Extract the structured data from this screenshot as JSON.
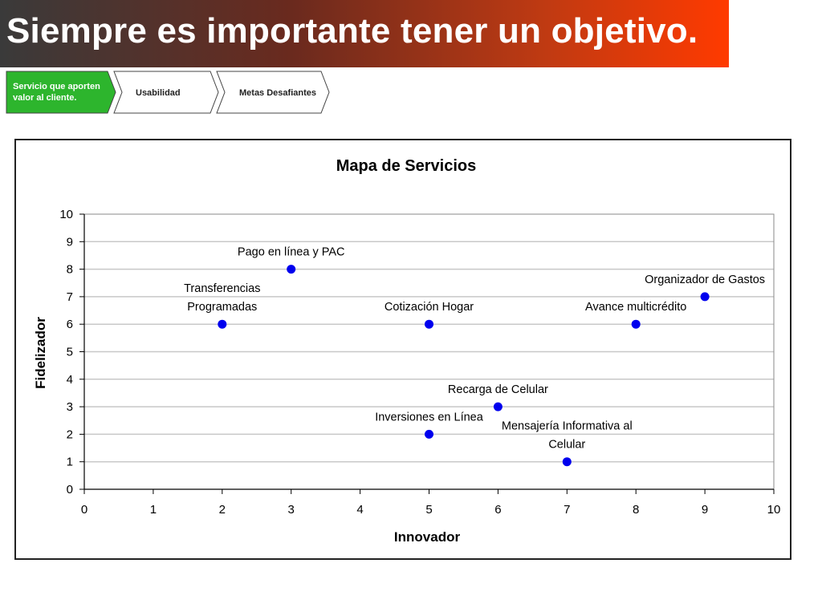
{
  "header": {
    "title": "Siempre es importante tener un objetivo."
  },
  "steps": [
    {
      "label_line1": "Servicio que aporten",
      "label_line2": "valor al cliente.",
      "active": true
    },
    {
      "label": "Usabilidad",
      "active": false
    },
    {
      "label": "Metas Desafiantes",
      "active": false
    }
  ],
  "colors": {
    "active_step": "#2db52d",
    "point": "#0000ee",
    "grid": "#c8c8c8"
  },
  "chart_data": {
    "type": "scatter",
    "title": "Mapa de Servicios",
    "xlabel": "Innovador",
    "ylabel": "Fidelizador",
    "xlim": [
      0,
      10
    ],
    "ylim": [
      0,
      10
    ],
    "xticks": [
      0,
      1,
      2,
      3,
      4,
      5,
      6,
      7,
      8,
      9,
      10
    ],
    "yticks": [
      0,
      1,
      2,
      3,
      4,
      5,
      6,
      7,
      8,
      9,
      10
    ],
    "grid": "horizontal",
    "points": [
      {
        "x": 2,
        "y": 6,
        "label": [
          "Transferencias",
          "Programadas"
        ]
      },
      {
        "x": 3,
        "y": 8,
        "label": [
          "Pago en línea y PAC"
        ]
      },
      {
        "x": 5,
        "y": 6,
        "label": [
          "Cotización Hogar"
        ]
      },
      {
        "x": 5,
        "y": 2,
        "label": [
          "Inversiones en Línea"
        ]
      },
      {
        "x": 6,
        "y": 3,
        "label": [
          "Recarga de Celular"
        ]
      },
      {
        "x": 7,
        "y": 1,
        "label": [
          "Mensajería Informativa al",
          "Celular"
        ]
      },
      {
        "x": 8,
        "y": 6,
        "label": [
          "Avance multicrédito"
        ]
      },
      {
        "x": 9,
        "y": 7,
        "label": [
          "Organizador de Gastos"
        ]
      }
    ]
  }
}
